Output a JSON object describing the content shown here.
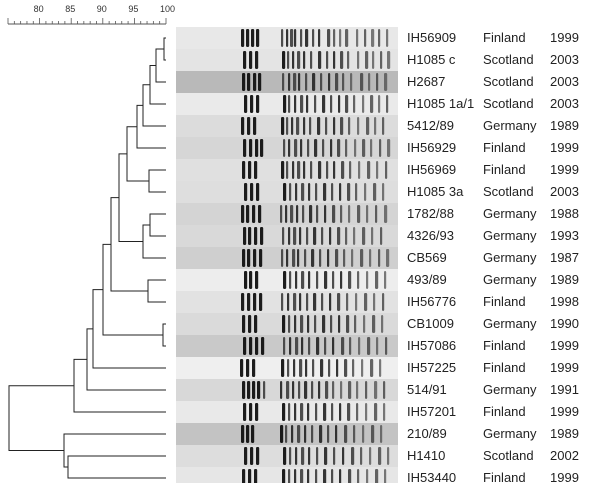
{
  "scale": {
    "ticks": [
      "80",
      "85",
      "90",
      "95",
      "100"
    ]
  },
  "isolates": [
    {
      "id": "IH56909",
      "country": "Finland",
      "year": "1999"
    },
    {
      "id": "H1085 c",
      "country": "Scotland",
      "year": "2003"
    },
    {
      "id": "H2687",
      "country": "Scotland",
      "year": "2003"
    },
    {
      "id": "H1085 1a/1",
      "country": "Scotland",
      "year": "2003"
    },
    {
      "id": "5412/89",
      "country": "Germany",
      "year": "1989"
    },
    {
      "id": "IH56929",
      "country": "Finland",
      "year": "1999"
    },
    {
      "id": "IH56969",
      "country": "Finland",
      "year": "1999"
    },
    {
      "id": "H1085 3a",
      "country": "Scotland",
      "year": "2003"
    },
    {
      "id": "1782/88",
      "country": "Germany",
      "year": "1988"
    },
    {
      "id": "4326/93",
      "country": "Germany",
      "year": "1993"
    },
    {
      "id": "CB569",
      "country": "Germany",
      "year": "1987"
    },
    {
      "id": "493/89",
      "country": "Germany",
      "year": "1989"
    },
    {
      "id": "IH56776",
      "country": "Finland",
      "year": "1998"
    },
    {
      "id": "CB1009",
      "country": "Germany",
      "year": "1990"
    },
    {
      "id": "IH57086",
      "country": "Finland",
      "year": "1999"
    },
    {
      "id": "IH57225",
      "country": "Finland",
      "year": "1999"
    },
    {
      "id": "514/91",
      "country": "Germany",
      "year": "1991"
    },
    {
      "id": "IH57201",
      "country": "Finland",
      "year": "1999"
    },
    {
      "id": "210/89",
      "country": "Germany",
      "year": "1989"
    },
    {
      "id": "H1410",
      "country": "Scotland",
      "year": "2002"
    },
    {
      "id": "IH53440",
      "country": "Finland",
      "year": "1999"
    }
  ]
}
